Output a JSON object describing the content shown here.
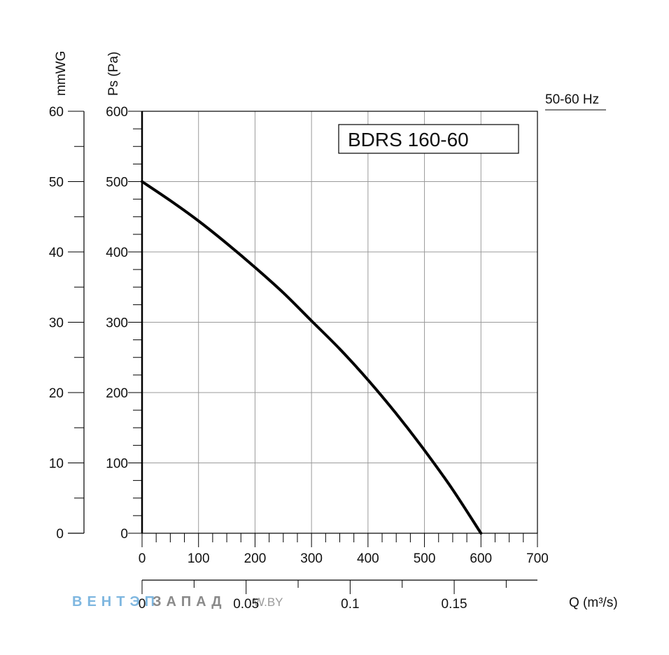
{
  "chart_data": {
    "type": "line",
    "title": "BDRS 160-60",
    "frequency_label": "50-60 Hz",
    "xlabel": "",
    "ylabel_pa": "Ps (Pa)",
    "ylabel_mmwg": "mmWG",
    "secondary_xlabel": "Q (m³/s)",
    "xlim": [
      0,
      700
    ],
    "ylim": [
      0,
      600
    ],
    "mmwg_lim": [
      0,
      60
    ],
    "q_lim": [
      0,
      0.19
    ],
    "x_ticks": [
      0,
      100,
      200,
      300,
      400,
      500,
      600,
      700
    ],
    "y_ticks": [
      0,
      100,
      200,
      300,
      400,
      500,
      600
    ],
    "mmwg_ticks": [
      0,
      10,
      20,
      30,
      40,
      50,
      60
    ],
    "q_ticks": [
      0,
      0.05,
      0.1,
      0.15
    ],
    "q_tick_labels": [
      "0",
      "0.05",
      "0.1",
      "0.15"
    ],
    "grid": true,
    "series": [
      {
        "x": [
          0,
          50,
          100,
          150,
          200,
          250,
          300,
          350,
          400,
          450,
          500,
          550,
          600
        ],
        "y": [
          500,
          473,
          444,
          412,
          378,
          342,
          302,
          262,
          218,
          170,
          118,
          62,
          0
        ]
      }
    ]
  },
  "watermark": {
    "part1": "ВЕНТЭП",
    "part2": "ЗАПАД",
    "part3": "W.BY",
    "color1": "#7fb7e0",
    "color2": "#8a8a8a"
  }
}
